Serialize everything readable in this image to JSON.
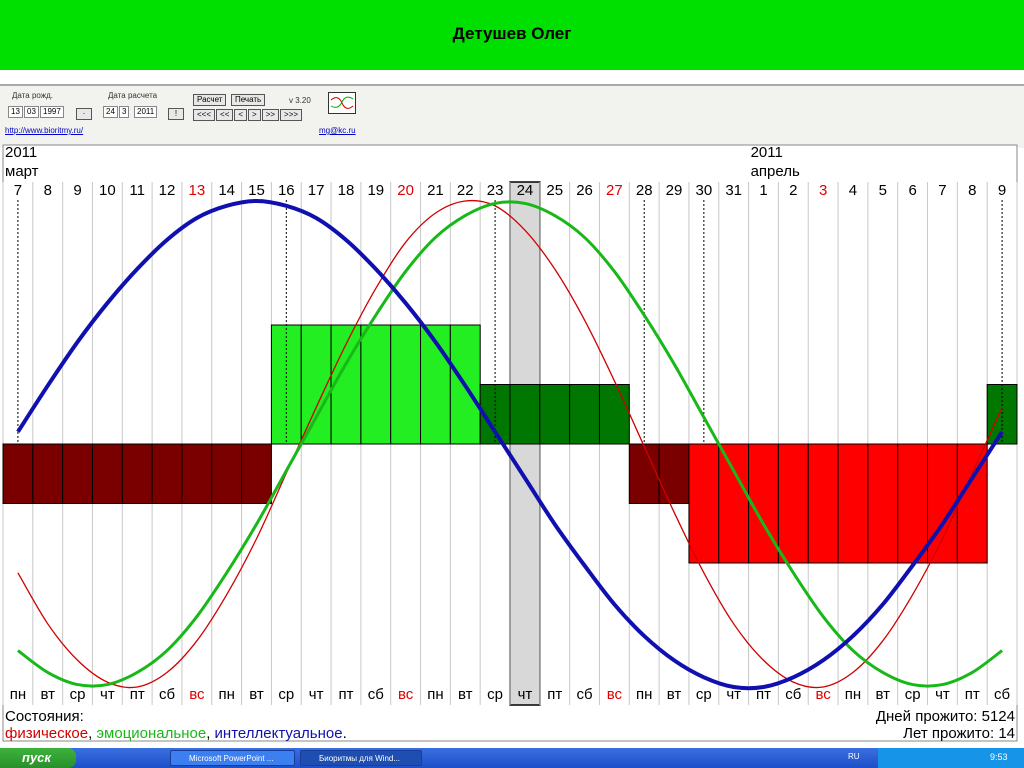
{
  "slide": {
    "title": "Детушев Олег"
  },
  "toolbar": {
    "birth_label": "Дата рожд.",
    "birth_day": "13",
    "birth_month": "03",
    "birth_year": "1997",
    "birth_button": "·",
    "calc_label": "Дата расчета",
    "calc_day": "24",
    "calc_month": "3",
    "calc_year": "2011",
    "calc_button": "!",
    "run": "Расчет",
    "print": "Печать",
    "version": "v 3.20",
    "nav": [
      "<<<",
      "<<",
      "<",
      ">",
      ">>",
      ">>>"
    ],
    "site": "http://www.bioritmy.ru/",
    "email": "mg@kc.ru"
  },
  "chart": {
    "year_start": "2011",
    "month_start": "март",
    "year_next": "2011",
    "month_next": "апрель",
    "days": [
      {
        "date": "7",
        "weekday": "пн",
        "marker": true
      },
      {
        "date": "8",
        "weekday": "вт"
      },
      {
        "date": "9",
        "weekday": "ср"
      },
      {
        "date": "10",
        "weekday": "чт"
      },
      {
        "date": "11",
        "weekday": "пт"
      },
      {
        "date": "12",
        "weekday": "сб"
      },
      {
        "date": "13",
        "weekday": "вс",
        "color": "#e00000"
      },
      {
        "date": "14",
        "weekday": "пн"
      },
      {
        "date": "15",
        "weekday": "вт"
      },
      {
        "date": "16",
        "weekday": "ср",
        "marker": true
      },
      {
        "date": "17",
        "weekday": "чт"
      },
      {
        "date": "18",
        "weekday": "пт"
      },
      {
        "date": "19",
        "weekday": "сб"
      },
      {
        "date": "20",
        "weekday": "вс",
        "color": "#e00000"
      },
      {
        "date": "21",
        "weekday": "пн"
      },
      {
        "date": "22",
        "weekday": "вт"
      },
      {
        "date": "23",
        "weekday": "ср",
        "marker": true
      },
      {
        "date": "24",
        "weekday": "чт",
        "selected": true
      },
      {
        "date": "25",
        "weekday": "пт"
      },
      {
        "date": "26",
        "weekday": "сб"
      },
      {
        "date": "27",
        "weekday": "вс",
        "color": "#e00000"
      },
      {
        "date": "28",
        "weekday": "пн",
        "marker": true
      },
      {
        "date": "29",
        "weekday": "вт"
      },
      {
        "date": "30",
        "weekday": "ср",
        "marker": true
      },
      {
        "date": "31",
        "weekday": "чт"
      },
      {
        "date": "1",
        "weekday": "пт",
        "new_month": true
      },
      {
        "date": "2",
        "weekday": "сб"
      },
      {
        "date": "3",
        "weekday": "вс",
        "color": "#e00000"
      },
      {
        "date": "4",
        "weekday": "пн"
      },
      {
        "date": "5",
        "weekday": "вт"
      },
      {
        "date": "6",
        "weekday": "ср"
      },
      {
        "date": "7",
        "weekday": "чт"
      },
      {
        "date": "8",
        "weekday": "пт"
      },
      {
        "date": "9",
        "weekday": "сб",
        "marker": true
      }
    ],
    "levels": [
      -1,
      -1,
      -1,
      -1,
      -1,
      -1,
      -1,
      -1,
      -1,
      2,
      2,
      2,
      2,
      2,
      2,
      2,
      1,
      1,
      1,
      1,
      1,
      -1,
      -1,
      -2,
      -2,
      -2,
      -2,
      -2,
      -2,
      -2,
      -2,
      -2,
      -2,
      1
    ],
    "level_colors": [
      "#7a0000",
      "#7a0000",
      "#7a0000",
      "#7a0000",
      "#7a0000",
      "#7a0000",
      "#7a0000",
      "#7a0000",
      "#7a0000",
      "#22ee22",
      "#22ee22",
      "#22ee22",
      "#22ee22",
      "#22ee22",
      "#22ee22",
      "#22ee22",
      "#007700",
      "#007700",
      "#007700",
      "#007700",
      "#007700",
      "#7a0000",
      "#7a0000",
      "#ff0000",
      "#ff0000",
      "#ff0000",
      "#ff0000",
      "#ff0000",
      "#ff0000",
      "#ff0000",
      "#ff0000",
      "#ff0000",
      "#ff0000",
      "#007700"
    ],
    "curves": [
      {
        "name": "физическое",
        "color": "#d00000",
        "values": [
          -0.53,
          -0.74,
          -0.89,
          -0.98,
          -1.0,
          -0.94,
          -0.81,
          -0.62,
          -0.39,
          -0.12,
          0.15,
          0.41,
          0.64,
          0.83,
          0.95,
          1.0,
          0.98,
          0.88,
          0.72,
          0.51,
          0.26,
          -0.01,
          -0.28,
          -0.53,
          -0.74,
          -0.89,
          -0.98,
          -1.0,
          -0.94,
          -0.81,
          -0.62,
          -0.39,
          -0.12,
          0.15
        ]
      },
      {
        "name": "эмоциональное",
        "color": "#18b818",
        "values": [
          -0.85,
          -0.94,
          -0.99,
          -0.99,
          -0.94,
          -0.85,
          -0.71,
          -0.53,
          -0.33,
          -0.11,
          0.11,
          0.33,
          0.53,
          0.71,
          0.85,
          0.94,
          0.99,
          0.99,
          0.94,
          0.85,
          0.71,
          0.53,
          0.33,
          0.11,
          -0.11,
          -0.33,
          -0.53,
          -0.71,
          -0.85,
          -0.94,
          -0.99,
          -0.99,
          -0.94,
          -0.85
        ]
      },
      {
        "name": "интеллектуальное",
        "color": "#1010b0",
        "values": [
          0.05,
          0.24,
          0.42,
          0.58,
          0.72,
          0.84,
          0.93,
          0.98,
          1.0,
          0.98,
          0.93,
          0.84,
          0.72,
          0.58,
          0.42,
          0.24,
          0.05,
          -0.14,
          -0.33,
          -0.5,
          -0.66,
          -0.79,
          -0.89,
          -0.96,
          -1.0,
          -1.0,
          -0.96,
          -0.89,
          -0.79,
          -0.66,
          -0.5,
          -0.33,
          -0.14,
          0.05
        ]
      }
    ],
    "states_label": "Состояния:",
    "separators": [
      ", ",
      ", ",
      "."
    ],
    "days_lived_label": "Дней прожито: ",
    "days_lived": 5124,
    "years_lived_label": "Лет прожито: ",
    "years_lived": 14
  },
  "taskbar": {
    "start": "пуск",
    "tasks": [
      "Microsoft PowerPoint ...",
      "Биоритмы для Wind..."
    ],
    "lang": "RU",
    "clock": "9:53"
  }
}
